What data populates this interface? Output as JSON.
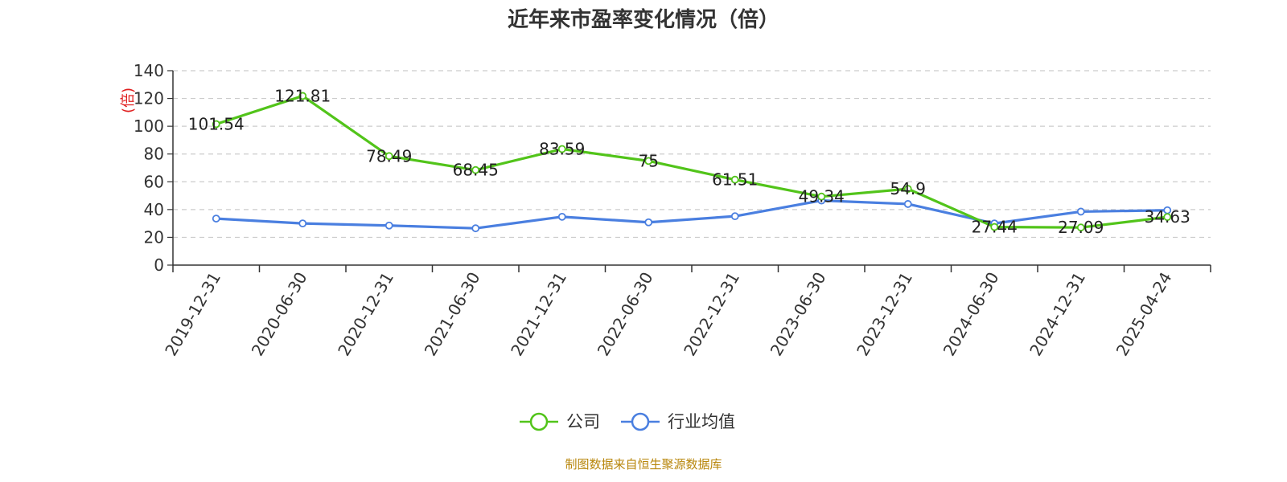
{
  "chart_data": {
    "type": "line",
    "title": "近年来市盈率变化情况（倍）",
    "unit_label": "(倍)",
    "categories": [
      "2019-12-31",
      "2020-06-30",
      "2020-12-31",
      "2021-06-30",
      "2021-12-31",
      "2022-06-30",
      "2022-12-31",
      "2023-06-30",
      "2023-12-31",
      "2024-06-30",
      "2024-12-31",
      "2025-04-24"
    ],
    "y_ticks": [
      "0",
      "20",
      "40",
      "60",
      "80",
      "100",
      "120",
      "140"
    ],
    "ylim": [
      0,
      140
    ],
    "grid": "horizontal dashed",
    "legend_position": "bottom-center",
    "series": [
      {
        "name": "公司",
        "color": "#52c41a",
        "values": [
          101.54,
          121.81,
          78.49,
          68.45,
          83.59,
          75,
          61.51,
          49.34,
          54.9,
          27.44,
          27.09,
          34.63
        ],
        "labels": [
          "101.54",
          "121.81",
          "78.49",
          "68.45",
          "83.59",
          "75",
          "61.51",
          "49.34",
          "54.9",
          "27.44",
          "27.09",
          "34.63"
        ]
      },
      {
        "name": "行业均值",
        "color": "#4a7fe0",
        "values": [
          33.5,
          30,
          28.5,
          26.5,
          34.8,
          30.8,
          35.2,
          46.5,
          44,
          30,
          38.5,
          39.5
        ]
      }
    ]
  },
  "source_text": "制图数据来自恒生聚源数据库",
  "source_color": "#b8860b",
  "unit_color": "#e02020"
}
